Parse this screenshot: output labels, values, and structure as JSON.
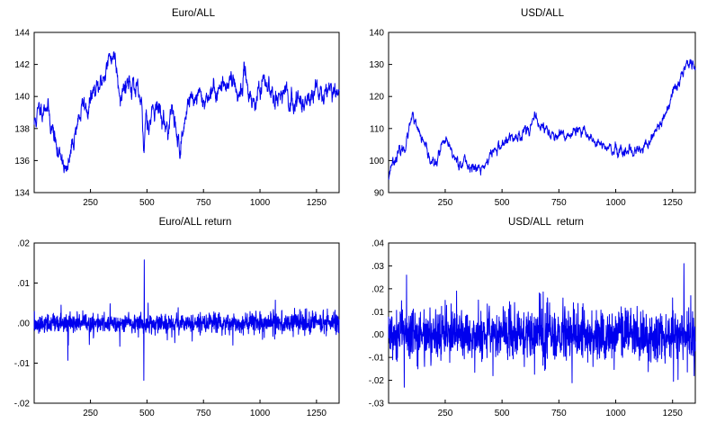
{
  "chart_data": [
    {
      "type": "line",
      "title": "Euro/ALL",
      "xlim": [
        1,
        1350
      ],
      "ylim": [
        134,
        144
      ],
      "xticks": [
        250,
        500,
        750,
        1000,
        1250
      ],
      "yticks": [
        134,
        136,
        138,
        140,
        142,
        144
      ],
      "ytick_labels": [
        "134",
        "136",
        "138",
        "140",
        "142",
        "144"
      ],
      "grid": false,
      "line_color": "#0000ee",
      "noise": 0.22,
      "seed": 11,
      "keypoints": [
        [
          1,
          138.3
        ],
        [
          20,
          139.0
        ],
        [
          40,
          139.4
        ],
        [
          55,
          139.7
        ],
        [
          70,
          138.6
        ],
        [
          90,
          137.6
        ],
        [
          105,
          136.2
        ],
        [
          120,
          136.6
        ],
        [
          135,
          135.8
        ],
        [
          145,
          135.0
        ],
        [
          160,
          136.2
        ],
        [
          175,
          137.3
        ],
        [
          190,
          138.4
        ],
        [
          205,
          138.9
        ],
        [
          220,
          139.5
        ],
        [
          240,
          139.2
        ],
        [
          260,
          140.2
        ],
        [
          285,
          140.3
        ],
        [
          305,
          141.2
        ],
        [
          320,
          141.8
        ],
        [
          335,
          142.3
        ],
        [
          350,
          142.7
        ],
        [
          360,
          142.4
        ],
        [
          375,
          140.9
        ],
        [
          385,
          140.2
        ],
        [
          400,
          140.7
        ],
        [
          420,
          141.1
        ],
        [
          440,
          140.8
        ],
        [
          460,
          139.9
        ],
        [
          475,
          139.4
        ],
        [
          485,
          136.3
        ],
        [
          495,
          139.0
        ],
        [
          510,
          138.4
        ],
        [
          530,
          139.6
        ],
        [
          550,
          139.3
        ],
        [
          570,
          138.5
        ],
        [
          590,
          138.0
        ],
        [
          610,
          139.1
        ],
        [
          630,
          137.8
        ],
        [
          645,
          136.9
        ],
        [
          660,
          137.6
        ],
        [
          680,
          139.8
        ],
        [
          700,
          139.9
        ],
        [
          725,
          140.0
        ],
        [
          750,
          139.7
        ],
        [
          775,
          140.2
        ],
        [
          800,
          140.3
        ],
        [
          820,
          140.6
        ],
        [
          840,
          140.5
        ],
        [
          860,
          141.1
        ],
        [
          875,
          141.3
        ],
        [
          890,
          140.6
        ],
        [
          905,
          140.0
        ],
        [
          920,
          140.6
        ],
        [
          935,
          141.4
        ],
        [
          950,
          140.5
        ],
        [
          970,
          139.6
        ],
        [
          990,
          140.1
        ],
        [
          1010,
          140.5
        ],
        [
          1030,
          140.7
        ],
        [
          1060,
          140.3
        ],
        [
          1090,
          140.2
        ],
        [
          1120,
          139.8
        ],
        [
          1140,
          139.4
        ],
        [
          1160,
          139.9
        ],
        [
          1180,
          139.6
        ],
        [
          1200,
          139.9
        ],
        [
          1230,
          140.2
        ],
        [
          1260,
          140.2
        ],
        [
          1290,
          140.3
        ],
        [
          1310,
          140.4
        ],
        [
          1330,
          140.3
        ],
        [
          1350,
          140.0
        ]
      ]
    },
    {
      "type": "line",
      "title": "USD/ALL",
      "xlim": [
        1,
        1350
      ],
      "ylim": [
        90,
        140
      ],
      "xticks": [
        250,
        500,
        750,
        1000,
        1250
      ],
      "yticks": [
        90,
        100,
        110,
        120,
        130,
        140
      ],
      "ytick_labels": [
        "90",
        "100",
        "110",
        "120",
        "130",
        "140"
      ],
      "grid": false,
      "line_color": "#0000ee",
      "noise": 0.6,
      "seed": 23,
      "keypoints": [
        [
          1,
          95.0
        ],
        [
          15,
          99.5
        ],
        [
          30,
          101.0
        ],
        [
          50,
          102.5
        ],
        [
          70,
          104.0
        ],
        [
          85,
          107.5
        ],
        [
          100,
          112.0
        ],
        [
          110,
          113.0
        ],
        [
          125,
          109.5
        ],
        [
          140,
          108.0
        ],
        [
          160,
          104.0
        ],
        [
          175,
          101.0
        ],
        [
          190,
          100.5
        ],
        [
          205,
          98.0
        ],
        [
          220,
          101.5
        ],
        [
          235,
          104.5
        ],
        [
          250,
          105.5
        ],
        [
          270,
          104.0
        ],
        [
          290,
          101.0
        ],
        [
          310,
          99.5
        ],
        [
          330,
          100.0
        ],
        [
          350,
          98.5
        ],
        [
          370,
          98.0
        ],
        [
          390,
          97.5
        ],
        [
          405,
          97.0
        ],
        [
          420,
          98.0
        ],
        [
          440,
          100.5
        ],
        [
          460,
          103.0
        ],
        [
          480,
          103.5
        ],
        [
          500,
          105.0
        ],
        [
          520,
          106.0
        ],
        [
          545,
          107.0
        ],
        [
          570,
          107.5
        ],
        [
          590,
          109.0
        ],
        [
          610,
          110.0
        ],
        [
          630,
          111.5
        ],
        [
          650,
          112.5
        ],
        [
          670,
          111.0
        ],
        [
          690,
          110.0
        ],
        [
          710,
          108.5
        ],
        [
          730,
          107.5
        ],
        [
          750,
          107.0
        ],
        [
          770,
          107.0
        ],
        [
          790,
          108.0
        ],
        [
          810,
          108.5
        ],
        [
          830,
          109.0
        ],
        [
          850,
          108.0
        ],
        [
          870,
          109.0
        ],
        [
          890,
          107.5
        ],
        [
          910,
          106.0
        ],
        [
          930,
          105.0
        ],
        [
          950,
          104.0
        ],
        [
          970,
          103.5
        ],
        [
          990,
          103.0
        ],
        [
          1010,
          102.0
        ],
        [
          1030,
          102.5
        ],
        [
          1050,
          101.5
        ],
        [
          1070,
          101.5
        ],
        [
          1085,
          102.0
        ],
        [
          1100,
          103.0
        ],
        [
          1120,
          103.5
        ],
        [
          1140,
          104.5
        ],
        [
          1160,
          107.0
        ],
        [
          1180,
          110.0
        ],
        [
          1200,
          112.0
        ],
        [
          1220,
          114.5
        ],
        [
          1240,
          118.0
        ],
        [
          1255,
          121.0
        ],
        [
          1270,
          123.0
        ],
        [
          1285,
          126.0
        ],
        [
          1300,
          129.0
        ],
        [
          1315,
          132.0
        ],
        [
          1325,
          131.5
        ],
        [
          1340,
          130.0
        ],
        [
          1350,
          129.0
        ]
      ]
    },
    {
      "type": "line",
      "title": "Euro/ALL return",
      "xlim": [
        1,
        1350
      ],
      "ylim": [
        -0.02,
        0.02
      ],
      "xticks": [
        250,
        500,
        750,
        1000,
        1250
      ],
      "yticks": [
        -0.02,
        -0.01,
        0.0,
        0.01,
        0.02
      ],
      "ytick_labels": [
        "-.02",
        "-.01",
        ".00",
        ".01",
        ".02"
      ],
      "grid": false,
      "line_color": "#0000ee",
      "base_amplitude": 0.0012,
      "seed": 37,
      "spikes": [
        [
          488,
          0.0158
        ],
        [
          486,
          -0.0143
        ],
        [
          150,
          -0.0093
        ],
        [
          505,
          0.005
        ],
        [
          380,
          -0.0058
        ],
        [
          120,
          0.0045
        ],
        [
          590,
          -0.0042
        ],
        [
          700,
          -0.0045
        ],
        [
          880,
          -0.0055
        ],
        [
          1065,
          -0.004
        ],
        [
          1200,
          0.0035
        ]
      ]
    },
    {
      "type": "line",
      "title": "USD/ALL  return",
      "xlim": [
        1,
        1350
      ],
      "ylim": [
        -0.03,
        0.04
      ],
      "xticks": [
        250,
        500,
        750,
        1000,
        1250
      ],
      "yticks": [
        -0.03,
        -0.02,
        -0.01,
        0.0,
        0.01,
        0.02,
        0.03,
        0.04
      ],
      "ytick_labels": [
        "-.03",
        "-.02",
        "-.01",
        ".00",
        ".01",
        ".02",
        ".03",
        ".04"
      ],
      "grid": false,
      "line_color": "#0000ee",
      "base_amplitude": 0.0055,
      "seed": 53,
      "spikes": [
        [
          80,
          0.026
        ],
        [
          70,
          -0.023
        ],
        [
          1300,
          0.031
        ],
        [
          1345,
          -0.018
        ],
        [
          1330,
          0.017
        ],
        [
          300,
          0.019
        ],
        [
          460,
          -0.018
        ],
        [
          130,
          -0.015
        ],
        [
          250,
          0.015
        ],
        [
          700,
          0.016
        ],
        [
          1250,
          0.016
        ],
        [
          555,
          0.014
        ],
        [
          900,
          -0.014
        ]
      ]
    }
  ]
}
